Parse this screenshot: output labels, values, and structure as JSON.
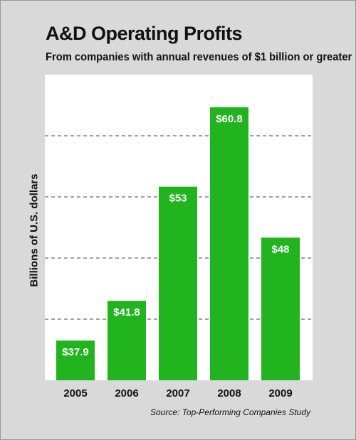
{
  "chart_data": {
    "type": "bar",
    "title": "A&D Operating Profits",
    "subtitle": "From companies with annual revenues of $1 billion or greater",
    "ylabel": "Billions of U.S. dollars",
    "xlabel": "",
    "categories": [
      "2005",
      "2006",
      "2007",
      "2008",
      "2009"
    ],
    "values": [
      37.9,
      41.8,
      53,
      60.8,
      48
    ],
    "data_labels": [
      "$37.9",
      "$41.8",
      "$53",
      "$60.8",
      "$48"
    ],
    "ylim": [
      34,
      64
    ],
    "grid": "dashed horizontal",
    "bar_color": "#22b41f",
    "source": "Source: Top-Performing Companies Study"
  }
}
